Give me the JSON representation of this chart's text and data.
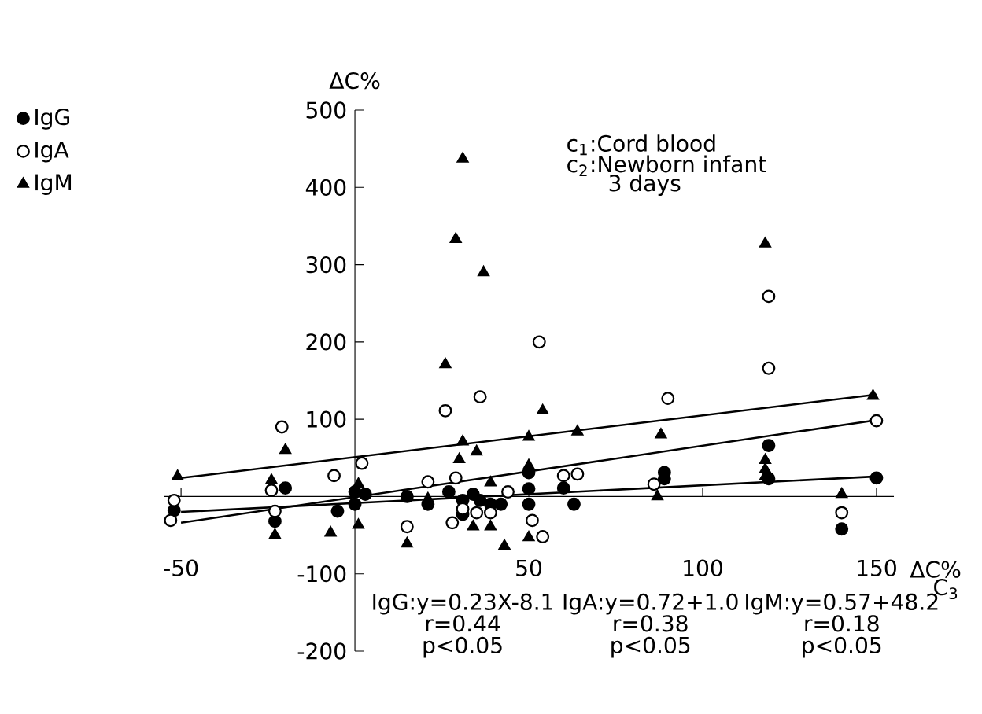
{
  "chart_data": {
    "type": "scatter",
    "xlabel": "ΔC%",
    "ylabel": "ΔC%",
    "xlim": [
      -55,
      155
    ],
    "ylim": [
      -200,
      500
    ],
    "xticks": [
      -50,
      50,
      100,
      150
    ],
    "yticks": [
      -200,
      -100,
      100,
      200,
      300,
      400,
      500
    ],
    "legend": "top left",
    "grid": false,
    "annotations": [
      "c$_{1}$:Cord blood",
      "c$_{2}$:Newborn infant",
      "3 days",
      "C$_{3}$",
      "IgG:y=0.23X-8.1",
      "r=0.44",
      "p<0.05",
      "IgA:y=0.72+1.0",
      "r=0.38",
      "p<0.05",
      "IgM:y=0.57+48.2",
      "r=0.18",
      "p<0.05"
    ],
    "series": [
      {
        "name": "IgG",
        "color": "#000000",
        "marker": "circle",
        "x": [
          -52,
          -23,
          -20,
          -5,
          0,
          3,
          15,
          21,
          27,
          31,
          31,
          34,
          36,
          39,
          42,
          50,
          50,
          50,
          60,
          63,
          89,
          89,
          119,
          119,
          150,
          140,
          0
        ],
        "values": [
          -18,
          -32,
          11,
          -19,
          6,
          3,
          0,
          -10,
          6,
          -5,
          -23,
          3,
          -5,
          -10,
          -10,
          31,
          10,
          -10,
          11,
          -10,
          31,
          23,
          66,
          23,
          24,
          -42,
          -10
        ]
      },
      {
        "name": "IgA",
        "color": "#000000",
        "marker": "circle",
        "x": [
          -52,
          -53,
          -21,
          -24,
          -23,
          -6,
          2,
          15,
          21,
          26,
          28,
          29,
          31,
          35,
          36,
          39,
          44,
          51,
          53,
          54,
          60,
          64,
          86,
          90,
          119,
          119,
          150,
          140
        ],
        "values": [
          -5,
          -31,
          90,
          8,
          -19,
          27,
          43,
          -39,
          19,
          111,
          -34,
          24,
          -16,
          -21,
          129,
          -21,
          6,
          -31,
          200,
          -52,
          27,
          29,
          16,
          127,
          259,
          166,
          98,
          -21
        ]
      },
      {
        "name": "IgM",
        "color": "#000000",
        "marker": "triangle",
        "x": [
          -51,
          -20,
          -24,
          -23,
          -7,
          1,
          1,
          15,
          21,
          26,
          29,
          30,
          31,
          31,
          34,
          35,
          37,
          39,
          39,
          43,
          50,
          50,
          50,
          54,
          64,
          87,
          88,
          118,
          118,
          118,
          118,
          140,
          149
        ],
        "values": [
          26,
          60,
          21,
          -50,
          -47,
          16,
          -37,
          -61,
          -3,
          171,
          333,
          48,
          437,
          71,
          -39,
          58,
          290,
          18,
          -39,
          -64,
          77,
          40,
          -53,
          111,
          84,
          0,
          80,
          327,
          47,
          35,
          26,
          3,
          130
        ]
      },
      {
        "type": "line",
        "color": "#000000",
        "marker": "none",
        "x": [
          -50,
          150
        ],
        "values": [
          -20,
          26
        ]
      },
      {
        "type": "line",
        "color": "#000000",
        "marker": "none",
        "x": [
          -50,
          150
        ],
        "values": [
          -34,
          99
        ]
      },
      {
        "type": "line",
        "color": "#000000",
        "marker": "none",
        "x": [
          -50,
          150
        ],
        "values": [
          24,
          132
        ]
      }
    ]
  }
}
